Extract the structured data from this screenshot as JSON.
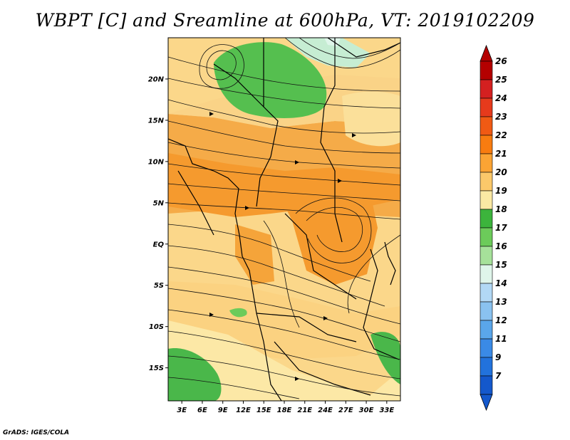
{
  "title": "WBPT [C] and Sreamline at 600hPa, VT: 2019102209",
  "credit": "GrADS: IGES/COLA",
  "map": {
    "lat_labels": [
      "20N",
      "15N",
      "10N",
      "5N",
      "EQ",
      "5S",
      "10S",
      "15S"
    ],
    "lat_values": [
      20,
      15,
      10,
      5,
      0,
      -5,
      -10,
      -15
    ],
    "lon_labels": [
      "3E",
      "6E",
      "9E",
      "12E",
      "15E",
      "18E",
      "21E",
      "24E",
      "27E",
      "30E",
      "33E"
    ],
    "lon_values": [
      3,
      6,
      9,
      12,
      15,
      18,
      21,
      24,
      27,
      30,
      33
    ],
    "lon_range": [
      1,
      35
    ],
    "lat_range": [
      -19,
      25
    ]
  },
  "colorbar": {
    "labels": [
      "26",
      "25",
      "24",
      "23",
      "22",
      "21",
      "20",
      "19",
      "18",
      "17",
      "16",
      "15",
      "14",
      "13",
      "12",
      "11",
      "9",
      "7"
    ],
    "colors": [
      "#b40000",
      "#d42020",
      "#e63a1c",
      "#f05a14",
      "#f87c10",
      "#fba434",
      "#fbc86a",
      "#fbe9a4",
      "#3cb43c",
      "#6ccb5a",
      "#a6e19a",
      "#dff5ea",
      "#b2d8f5",
      "#8ac2f0",
      "#5aa6ea",
      "#3a8ae6",
      "#2272dc",
      "#1458cc"
    ]
  }
}
